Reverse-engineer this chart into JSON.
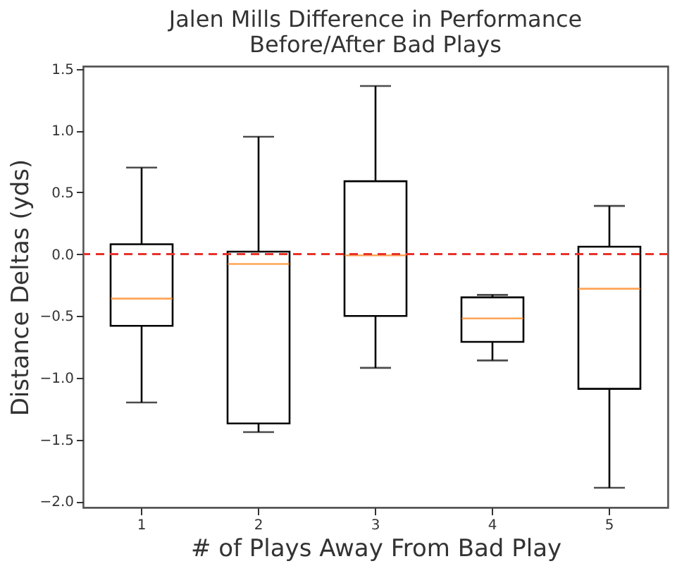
{
  "chart_data": {
    "type": "box",
    "title": [
      "Jalen Mills Difference in Performance",
      "Before/After Bad Plays"
    ],
    "xlabel": "# of Plays Away From Bad Play",
    "ylabel": "Distance Deltas (yds)",
    "categories": [
      "1",
      "2",
      "3",
      "4",
      "5"
    ],
    "boxes": [
      {
        "low": -1.2,
        "q1": -0.58,
        "median": -0.36,
        "q3": 0.08,
        "high": 0.7
      },
      {
        "low": -1.44,
        "q1": -1.37,
        "median": -0.08,
        "q3": 0.02,
        "high": 0.95
      },
      {
        "low": -0.92,
        "q1": -0.5,
        "median": -0.01,
        "q3": 0.59,
        "high": 1.36
      },
      {
        "low": -0.86,
        "q1": -0.71,
        "median": -0.52,
        "q3": -0.35,
        "high": -0.33
      },
      {
        "low": -1.89,
        "q1": -1.09,
        "median": -0.28,
        "q3": 0.06,
        "high": 0.39
      }
    ],
    "color": "#000000",
    "ylim": [
      -2.05,
      1.52
    ],
    "yticks": [
      {
        "value": -2,
        "label": "−2.0"
      },
      -1.5,
      {
        "value": -1,
        "label": "−1.0"
      },
      -0.5,
      {
        "value": 0,
        "label": "0.0"
      },
      0.5,
      {
        "value": 1,
        "label": "1.0"
      },
      1.5
    ],
    "ref_lines": [
      {
        "axis": "y",
        "value": 0,
        "color": "#e8322a",
        "line_style": "dashed"
      }
    ],
    "grid": false
  }
}
